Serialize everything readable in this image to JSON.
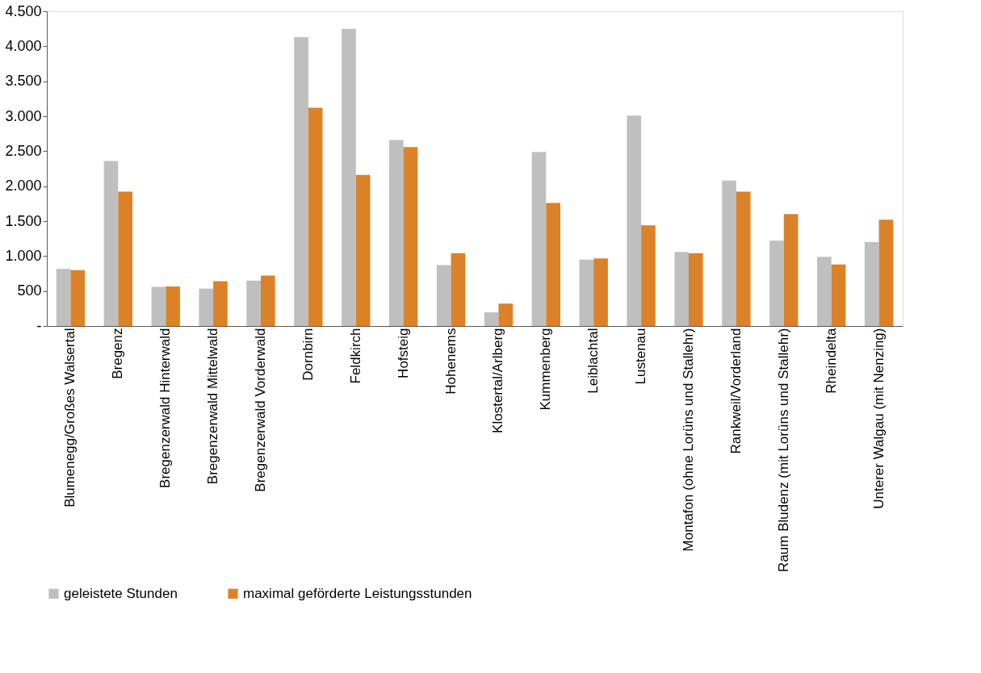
{
  "chart_data": {
    "type": "bar",
    "categories": [
      "Blumenegg/Großes Walsertal",
      "Bregenz",
      "Bregenzerwald Hinterwald",
      "Bregenzerwald Mittelwald",
      "Bregenzerwald Vorderwald",
      "Dornbirn",
      "Feldkirch",
      "Hofsteig",
      "Hohenems",
      "Klostertal/Arlberg",
      "Kummenberg",
      "Leiblachtal",
      "Lustenau",
      "Montafon (ohne Lorüns und Stallehr)",
      "Rankweil/Vorderland",
      "Raum Bludenz (mit Lorüns und Stallehr)",
      "Rheindelta",
      "Unterer Walgau (mit Nenzing)"
    ],
    "series": [
      {
        "name": "geleistete Stunden",
        "color": "#bfbfbf",
        "values": [
          815,
          2360,
          560,
          535,
          650,
          4130,
          4250,
          2660,
          870,
          195,
          2490,
          950,
          3010,
          1060,
          2080,
          1220,
          990,
          1200
        ]
      },
      {
        "name": "maximal geförderte Leistungsstunden",
        "color": "#db8229",
        "values": [
          800,
          1920,
          565,
          640,
          720,
          3120,
          2160,
          2560,
          1040,
          320,
          1760,
          965,
          1440,
          1040,
          1920,
          1600,
          880,
          1520
        ]
      }
    ],
    "ylim": [
      0,
      4500
    ],
    "yticks": [
      {
        "value": 0,
        "label": "-"
      },
      500,
      {
        "value": 1000,
        "label": "1.000"
      },
      {
        "value": 1500,
        "label": "1.500"
      },
      {
        "value": 2000,
        "label": "2.000"
      },
      {
        "value": 2500,
        "label": "2.500"
      },
      {
        "value": 3000,
        "label": "3.000"
      },
      {
        "value": 3500,
        "label": "3.500"
      },
      {
        "value": 4000,
        "label": "4.000"
      },
      {
        "value": 4500,
        "label": "4.500"
      }
    ],
    "grid": false,
    "legend": "bottom left"
  }
}
